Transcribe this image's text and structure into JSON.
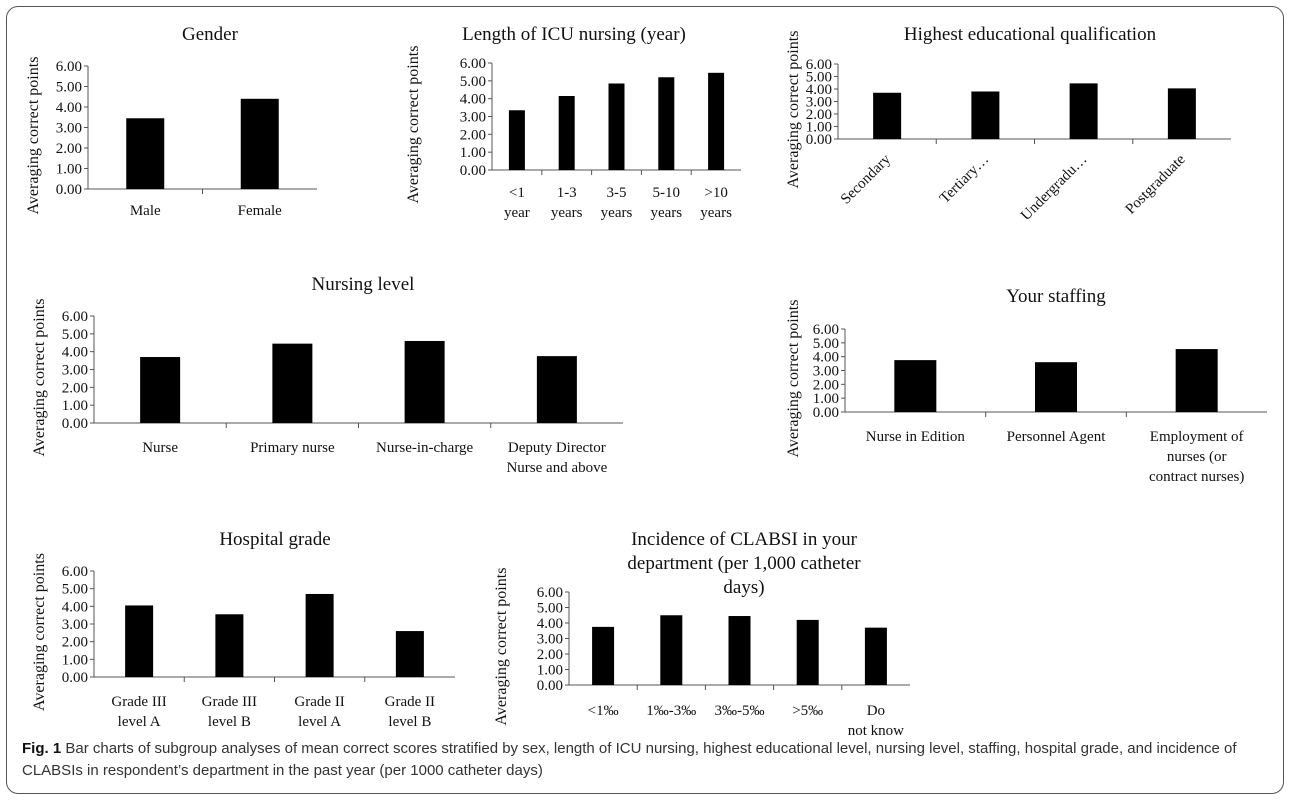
{
  "figure": {
    "label": "Fig. 1",
    "caption": "Bar charts of subgroup analyses of mean correct scores stratified by sex, length of ICU nursing, highest educational level, nursing level, staffing, hospital grade, and incidence of CLABSIs in respondent’s department in the past year (per 1000 catheter days)"
  },
  "chart_data": [
    {
      "type": "bar",
      "title": "Gender",
      "ylabel": "Averaging correct points",
      "ylim": [
        0,
        6
      ],
      "yticks": [
        "0.00",
        "1.00",
        "2.00",
        "3.00",
        "4.00",
        "5.00",
        "6.00"
      ],
      "categories": [
        "Male",
        "Female"
      ],
      "values": [
        3.45,
        4.4
      ],
      "bar_color": "#000000",
      "grid": false
    },
    {
      "type": "bar",
      "title": "Length of ICU nursing (year)",
      "ylabel": "Averaging correct points",
      "ylim": [
        0,
        6
      ],
      "yticks": [
        "0.00",
        "1.00",
        "2.00",
        "3.00",
        "4.00",
        "5.00",
        "6.00"
      ],
      "categories": [
        "<1 year",
        "1-3 years",
        "3-5 years",
        "5-10 years",
        ">10 years"
      ],
      "values": [
        3.35,
        4.15,
        4.85,
        5.2,
        5.45
      ],
      "bar_color": "#000000",
      "grid": false
    },
    {
      "type": "bar",
      "title": "Highest educational qualification",
      "ylabel": "Averaging correct points",
      "ylim": [
        0,
        6
      ],
      "yticks": [
        "0.00",
        "1.00",
        "2.00",
        "3.00",
        "4.00",
        "5.00",
        "6.00"
      ],
      "categories": [
        "Secondary",
        "Tertiary…",
        "Undergradu…",
        "Postgraduate"
      ],
      "values": [
        3.7,
        3.8,
        4.45,
        4.05
      ],
      "bar_color": "#000000",
      "grid": false
    },
    {
      "type": "bar",
      "title": "Nursing level",
      "ylabel": "Averaging correct points",
      "ylim": [
        0,
        6
      ],
      "yticks": [
        "0.00",
        "1.00",
        "2.00",
        "3.00",
        "4.00",
        "5.00",
        "6.00"
      ],
      "categories": [
        "Nurse",
        "Primary nurse",
        "Nurse-in-charge",
        "Deputy Director Nurse and above"
      ],
      "values": [
        3.7,
        4.45,
        4.6,
        3.75
      ],
      "bar_color": "#000000",
      "grid": false
    },
    {
      "type": "bar",
      "title": "Your staffing",
      "ylabel": "Averaging correct points",
      "ylim": [
        0,
        6
      ],
      "yticks": [
        "0.00",
        "1.00",
        "2.00",
        "3.00",
        "4.00",
        "5.00",
        "6.00"
      ],
      "categories": [
        "Nurse in Edition",
        "Personnel Agent",
        "Employment of nurses (or contract nurses)"
      ],
      "values": [
        3.75,
        3.6,
        4.55
      ],
      "bar_color": "#000000",
      "grid": false
    },
    {
      "type": "bar",
      "title": "Hospital grade",
      "ylabel": "Averaging correct points",
      "ylim": [
        0,
        6
      ],
      "yticks": [
        "0.00",
        "1.00",
        "2.00",
        "3.00",
        "4.00",
        "5.00",
        "6.00"
      ],
      "categories": [
        "Grade III level A",
        "Grade III level B",
        "Grade II level A",
        "Grade II level B"
      ],
      "values": [
        4.05,
        3.55,
        4.7,
        2.6
      ],
      "bar_color": "#000000",
      "grid": false
    },
    {
      "type": "bar",
      "title": "Incidence of CLABSI in your department (per 1,000 catheter days)",
      "ylabel": "Averaging correct points",
      "ylim": [
        0,
        6
      ],
      "yticks": [
        "0.00",
        "1.00",
        "2.00",
        "3.00",
        "4.00",
        "5.00",
        "6.00"
      ],
      "categories": [
        "<1‰",
        "1‰-3‰",
        "3‰-5‰",
        ">5‰",
        "Do not know"
      ],
      "values": [
        3.75,
        4.5,
        4.45,
        4.2,
        3.7
      ],
      "bar_color": "#000000",
      "grid": false
    }
  ]
}
